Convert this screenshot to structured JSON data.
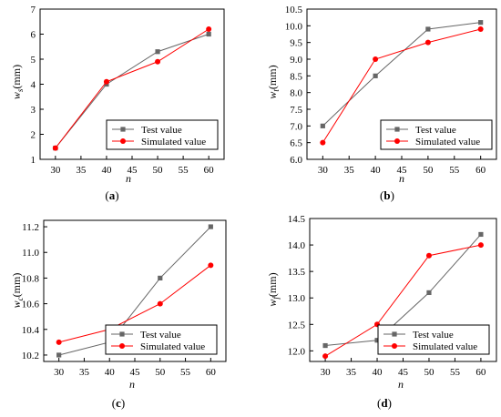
{
  "legend": {
    "test_label": "Test value",
    "simulated_label": "Simulated value"
  },
  "colors": {
    "test": "#666666",
    "simulated": "#ff0000",
    "axis": "#000000"
  },
  "chart_data": [
    {
      "type": "line",
      "panel_label": "(a)",
      "xlabel": "n",
      "ylabel": "w_s(mm)",
      "x": [
        30,
        40,
        50,
        60
      ],
      "xlim": [
        27,
        63
      ],
      "ylim": [
        1,
        7
      ],
      "xticks": [
        30,
        35,
        40,
        45,
        50,
        55,
        60
      ],
      "yticks": [
        1,
        2,
        3,
        4,
        5,
        6,
        7
      ],
      "tick_decimals": 0,
      "legend_position": "bottom-right",
      "series": [
        {
          "name": "Test value",
          "marker": "square",
          "values": [
            1.45,
            4.0,
            5.3,
            6.0
          ]
        },
        {
          "name": "Simulated value",
          "marker": "circle",
          "values": [
            1.45,
            4.1,
            4.9,
            6.2
          ]
        }
      ]
    },
    {
      "type": "line",
      "panel_label": "(b)",
      "xlabel": "n",
      "ylabel": "w_t(mm)",
      "x": [
        30,
        40,
        50,
        60
      ],
      "xlim": [
        27,
        63
      ],
      "ylim": [
        6.0,
        10.5
      ],
      "xticks": [
        30,
        35,
        40,
        45,
        50,
        55,
        60
      ],
      "yticks": [
        6.0,
        6.5,
        7.0,
        7.5,
        8.0,
        8.5,
        9.0,
        9.5,
        10.0,
        10.5
      ],
      "tick_decimals": 1,
      "legend_position": "bottom-right",
      "series": [
        {
          "name": "Test value",
          "marker": "square",
          "values": [
            7.0,
            8.5,
            9.9,
            10.1
          ]
        },
        {
          "name": "Simulated value",
          "marker": "circle",
          "values": [
            6.5,
            9.0,
            9.5,
            9.9
          ]
        }
      ]
    },
    {
      "type": "line",
      "panel_label": "(c)",
      "xlabel": "n",
      "ylabel": "w_c(mm)",
      "x": [
        30,
        40,
        50,
        60
      ],
      "xlim": [
        27,
        63
      ],
      "ylim": [
        10.15,
        11.25
      ],
      "xticks": [
        30,
        35,
        40,
        45,
        50,
        55,
        60
      ],
      "yticks": [
        10.2,
        10.4,
        10.6,
        10.8,
        11.0,
        11.2
      ],
      "tick_decimals": 1,
      "legend_position": "bottom-right",
      "series": [
        {
          "name": "Test value",
          "marker": "square",
          "values": [
            10.2,
            10.3,
            10.8,
            11.2
          ]
        },
        {
          "name": "Simulated value",
          "marker": "circle",
          "values": [
            10.3,
            10.4,
            10.6,
            10.9
          ]
        }
      ]
    },
    {
      "type": "line",
      "panel_label": "(d)",
      "xlabel": "n",
      "ylabel": "w_f(mm)",
      "x": [
        30,
        40,
        50,
        60
      ],
      "xlim": [
        27,
        63
      ],
      "ylim": [
        11.8,
        14.5
      ],
      "xticks": [
        30,
        35,
        40,
        45,
        50,
        55,
        60
      ],
      "yticks": [
        12.0,
        12.5,
        13.0,
        13.5,
        14.0,
        14.5
      ],
      "tick_decimals": 1,
      "legend_position": "bottom-right",
      "series": [
        {
          "name": "Test value",
          "marker": "square",
          "values": [
            12.1,
            12.2,
            13.1,
            14.2
          ]
        },
        {
          "name": "Simulated value",
          "marker": "circle",
          "values": [
            11.9,
            12.5,
            13.8,
            14.0
          ]
        }
      ]
    }
  ]
}
